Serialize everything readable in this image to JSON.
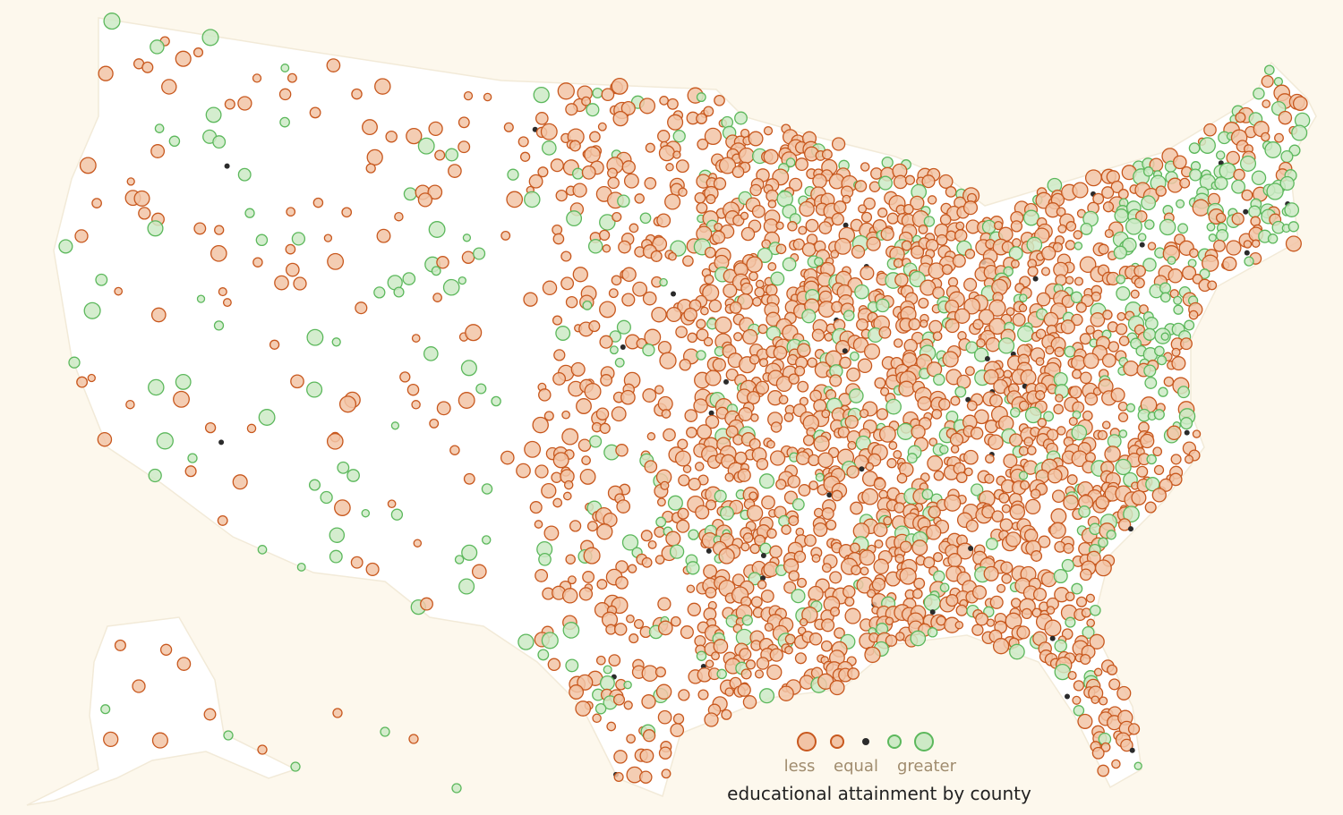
{
  "legend": {
    "labels": [
      "less",
      "equal",
      "greater"
    ],
    "caption": "educational attainment by county"
  }
}
